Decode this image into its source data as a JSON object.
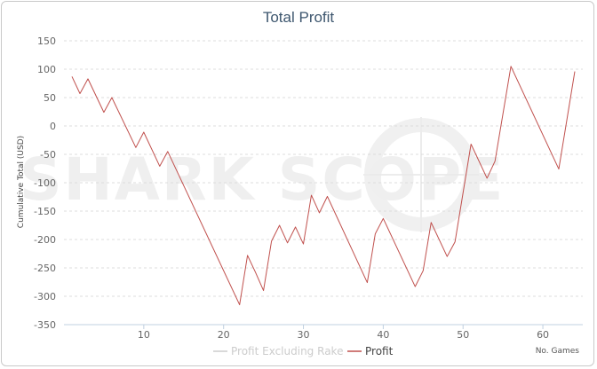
{
  "chart_data": {
    "type": "line",
    "title": "Total Profit",
    "xlabel": "No. Games",
    "ylabel": "Cumulative Total (USD)",
    "x_ticks": [
      10,
      20,
      30,
      40,
      50,
      60
    ],
    "y_ticks": [
      150,
      100,
      50,
      0,
      -50,
      -100,
      -150,
      -200,
      -250,
      -300,
      -350
    ],
    "xlim": [
      0,
      65
    ],
    "ylim": [
      -350,
      150
    ],
    "grid": true,
    "legend_position": "bottom",
    "watermark": "SHARK SCOPE",
    "series": [
      {
        "name": "Profit Excluding Rake",
        "color": "#cccccc",
        "x": [],
        "values": []
      },
      {
        "name": "Profit",
        "color": "#c0504d",
        "x": [
          1,
          2,
          3,
          5,
          6,
          9,
          10,
          12,
          13,
          22,
          23,
          24,
          25,
          26,
          27,
          28,
          29,
          30,
          31,
          32,
          33,
          38,
          39,
          40,
          44,
          45,
          46,
          48,
          49,
          51,
          53,
          54,
          56,
          62,
          64
        ],
        "values": [
          87,
          57,
          83,
          24,
          50,
          -38,
          -11,
          -71,
          -45,
          -315,
          -228,
          -258,
          -290,
          -203,
          -175,
          -206,
          -178,
          -208,
          -122,
          -153,
          -124,
          -276,
          -190,
          -163,
          -283,
          -255,
          -170,
          -230,
          -204,
          -32,
          -92,
          -62,
          105,
          -76,
          96
        ]
      }
    ]
  }
}
